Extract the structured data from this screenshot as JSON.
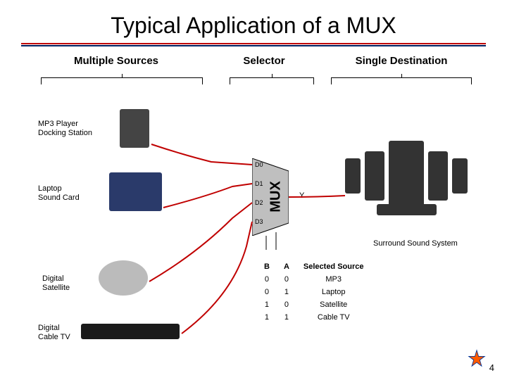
{
  "title": "Typical Application of a MUX",
  "rule_color_top": "#c00000",
  "rule_color_bottom": "#002060",
  "sections": {
    "left": "Multiple Sources",
    "mid": "Selector",
    "right": "Single Destination"
  },
  "devices": {
    "mp3": "MP3 Player\nDocking Station",
    "laptop": "Laptop\nSound Card",
    "sat": "Digital\nSatellite",
    "cable": "Digital\nCable TV"
  },
  "mux": {
    "label": "MUX",
    "inputs": [
      "D0",
      "D1",
      "D2",
      "D3"
    ],
    "output": "Y",
    "fill": "#bfbfbf",
    "stroke": "#000000"
  },
  "wire_color": "#c00000",
  "truth": {
    "headers": [
      "B",
      "A",
      "Selected Source"
    ],
    "rows": [
      [
        "0",
        "0",
        "MP3"
      ],
      [
        "0",
        "1",
        "Laptop"
      ],
      [
        "1",
        "0",
        "Satellite"
      ],
      [
        "1",
        "1",
        "Cable TV"
      ]
    ]
  },
  "surround_label": "Surround Sound System",
  "page_number": "4"
}
